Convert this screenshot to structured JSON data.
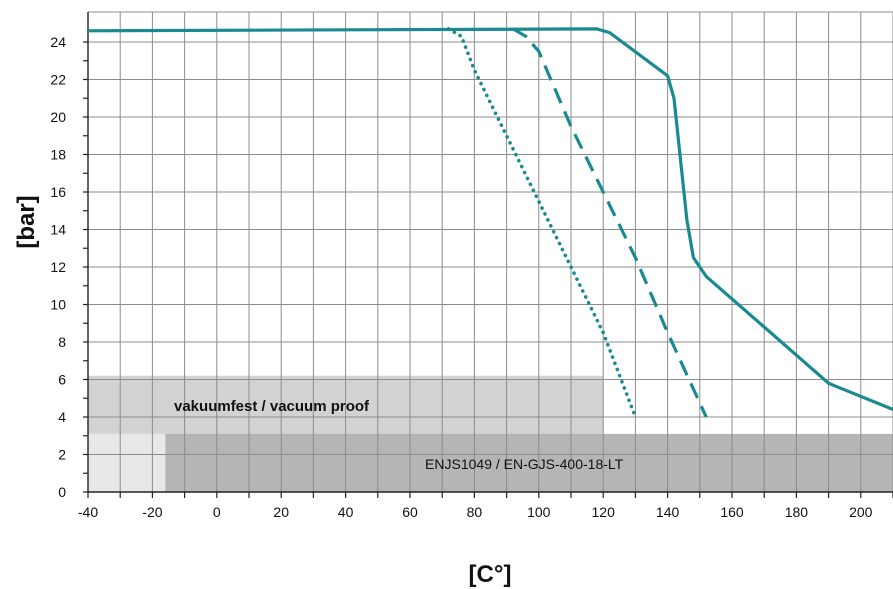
{
  "chart_data": {
    "type": "line",
    "title": "",
    "xlabel": "[C°]",
    "ylabel": "[bar]",
    "xlim": [
      -40,
      210
    ],
    "ylim": [
      0,
      25.6
    ],
    "x_ticks": [
      -40,
      -20,
      0,
      20,
      40,
      60,
      80,
      100,
      120,
      140,
      160,
      180,
      200
    ],
    "y_ticks": [
      0,
      2,
      4,
      6,
      8,
      10,
      12,
      14,
      16,
      18,
      20,
      22,
      24
    ],
    "grid": true,
    "line_color": "#1a8a92",
    "series": [
      {
        "style": "solid",
        "points": [
          [
            -40,
            24.6
          ],
          [
            118,
            24.7
          ],
          [
            122,
            24.5
          ],
          [
            140,
            22.2
          ],
          [
            142,
            21.0
          ],
          [
            146,
            14.5
          ],
          [
            148,
            12.5
          ],
          [
            152,
            11.5
          ],
          [
            170,
            8.8
          ],
          [
            190,
            5.8
          ],
          [
            210,
            4.4
          ]
        ]
      },
      {
        "style": "dashed",
        "points": [
          [
            92,
            24.7
          ],
          [
            96,
            24.3
          ],
          [
            100,
            23.5
          ],
          [
            110,
            19.5
          ],
          [
            120,
            16.0
          ],
          [
            130,
            12.5
          ],
          [
            140,
            8.5
          ],
          [
            152,
            4.0
          ]
        ]
      },
      {
        "style": "dotted",
        "points": [
          [
            72,
            24.7
          ],
          [
            76,
            24.3
          ],
          [
            80,
            22.5
          ],
          [
            90,
            19.0
          ],
          [
            100,
            15.5
          ],
          [
            110,
            12.0
          ],
          [
            120,
            8.5
          ],
          [
            130,
            4.0
          ]
        ]
      }
    ],
    "bands": [
      {
        "label": "vakuumfest / vacuum proof",
        "x_start": -40,
        "x_end": 120,
        "y_start": 3.1,
        "y_end": 6.2,
        "color": "#d2d2d2"
      },
      {
        "label": "",
        "x_start": -40,
        "x_end": -16,
        "y_start": 0,
        "y_end": 3.1,
        "color": "#e8e8e8"
      },
      {
        "label": "ENJS1049 / EN-GJS-400-18-LT",
        "x_start": -16,
        "x_end": 210,
        "y_start": 0,
        "y_end": 3.1,
        "color": "#b5b5b5"
      }
    ]
  }
}
